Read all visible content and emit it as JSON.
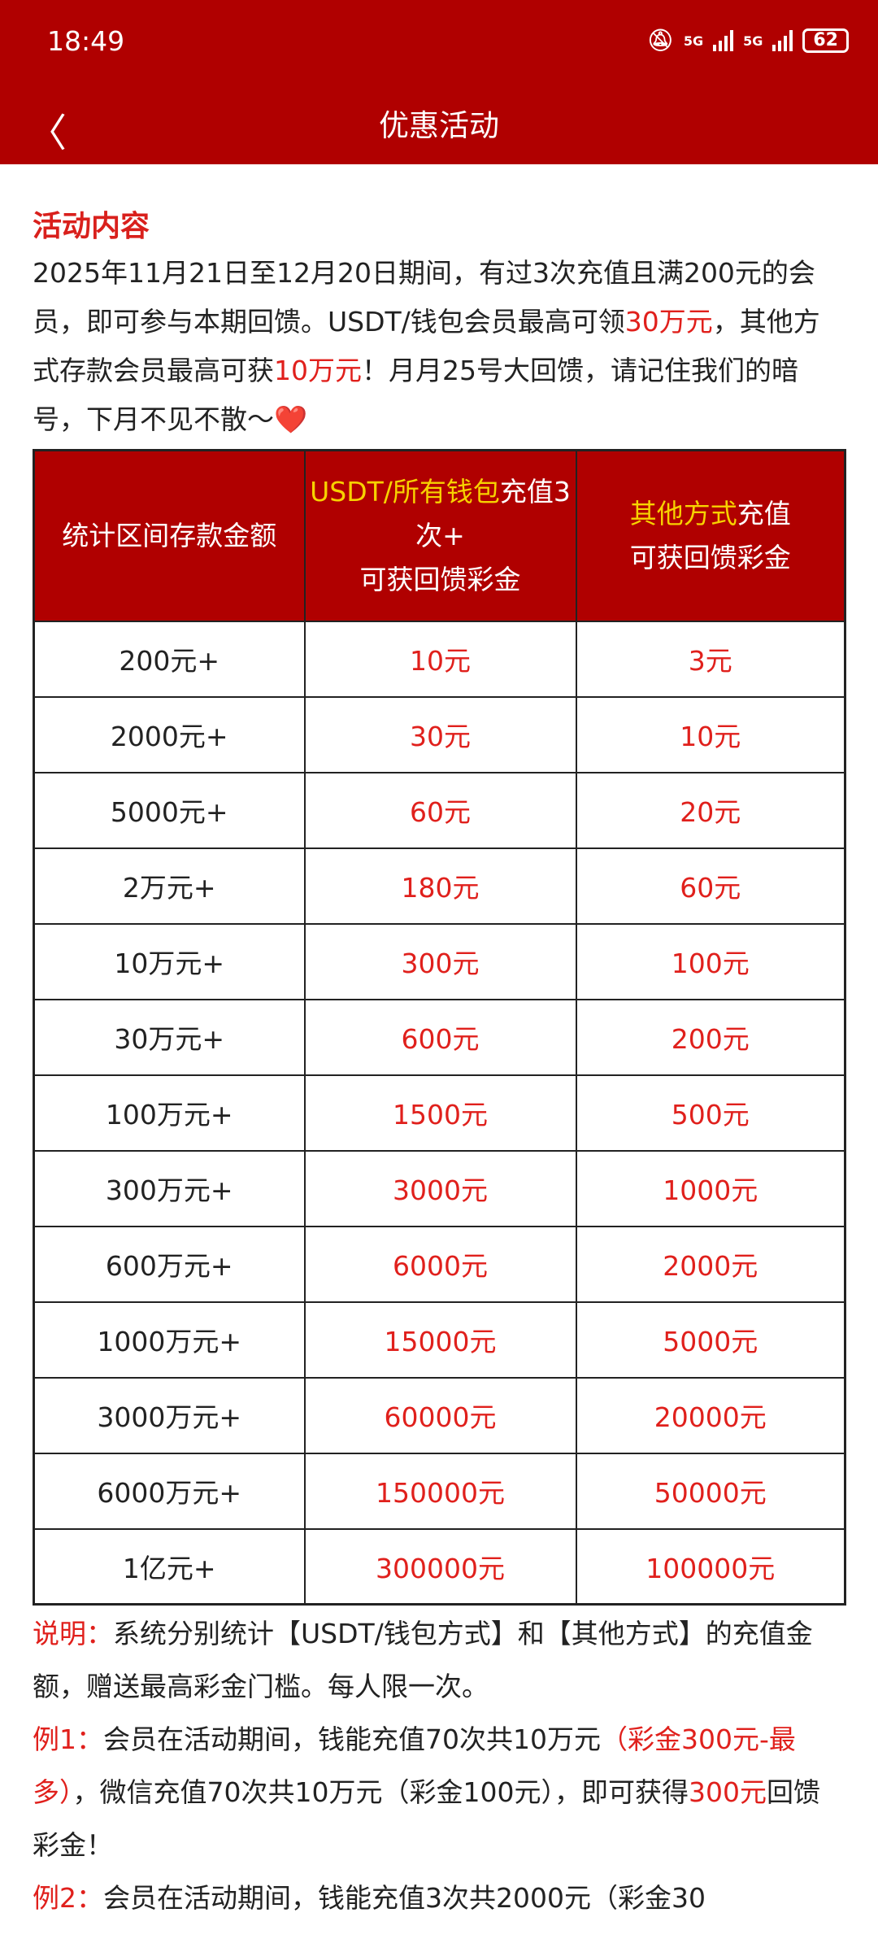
{
  "status": {
    "time": "18:49",
    "net1": "5G",
    "net2": "5G",
    "battery": "62"
  },
  "header": {
    "title": "优惠活动"
  },
  "section": {
    "title": "活动内容",
    "intro": [
      {
        "t": "2025年11月21日至12月20日期间，有过3次充值且满200元的会员，即可参与本期回馈。USDT/钱包会员最高可领",
        "red": false
      },
      {
        "t": "30万元",
        "red": true
      },
      {
        "t": "，其他方式存款会员最高可获",
        "red": false
      },
      {
        "t": "10万元",
        "red": true
      },
      {
        "t": "！月月25号大回馈，请记住我们的暗号，下月不见不散～❤️",
        "red": false
      }
    ]
  },
  "table": {
    "headers": {
      "col1": "统计区间存款金额",
      "col2_hl": "USDT/所有钱包",
      "col2_rest": "充值3次+",
      "col2_line2": "可获回馈彩金",
      "col3_hl": "其他方式",
      "col3_rest": "充值",
      "col3_line2": "可获回馈彩金"
    },
    "rows": [
      [
        "200元+",
        "10元",
        "3元"
      ],
      [
        "2000元+",
        "30元",
        "10元"
      ],
      [
        "5000元+",
        "60元",
        "20元"
      ],
      [
        "2万元+",
        "180元",
        "60元"
      ],
      [
        "10万元+",
        "300元",
        "100元"
      ],
      [
        "30万元+",
        "600元",
        "200元"
      ],
      [
        "100万元+",
        "1500元",
        "500元"
      ],
      [
        "300万元+",
        "3000元",
        "1000元"
      ],
      [
        "600万元+",
        "6000元",
        "2000元"
      ],
      [
        "1000万元+",
        "15000元",
        "5000元"
      ],
      [
        "3000万元+",
        "60000元",
        "20000元"
      ],
      [
        "6000万元+",
        "150000元",
        "50000元"
      ],
      [
        "1亿元+",
        "300000元",
        "100000元"
      ]
    ]
  },
  "notes": [
    [
      {
        "t": "说明：",
        "red": true
      },
      {
        "t": "系统分别统计【USDT/钱包方式】和【其他方式】的充值金额，赠送最高彩金门槛。每人限一次。",
        "red": false
      }
    ],
    [
      {
        "t": "例1：",
        "red": true
      },
      {
        "t": "会员在活动期间，钱能充值70次共10万元",
        "red": false
      },
      {
        "t": "（彩金300元-最多）",
        "red": true
      },
      {
        "t": "，微信充值70次共10万元（彩金100元），即可获得",
        "red": false
      },
      {
        "t": "300元",
        "red": true
      },
      {
        "t": "回馈彩金！",
        "red": false
      }
    ],
    [
      {
        "t": "例2：",
        "red": true
      },
      {
        "t": "会员在活动期间，钱能充值3次共2000元（彩金30",
        "red": false
      }
    ]
  ],
  "colors": {
    "brand": "#b00000",
    "highlight_red": "#e0201c",
    "highlight_yellow": "#f7d200"
  }
}
